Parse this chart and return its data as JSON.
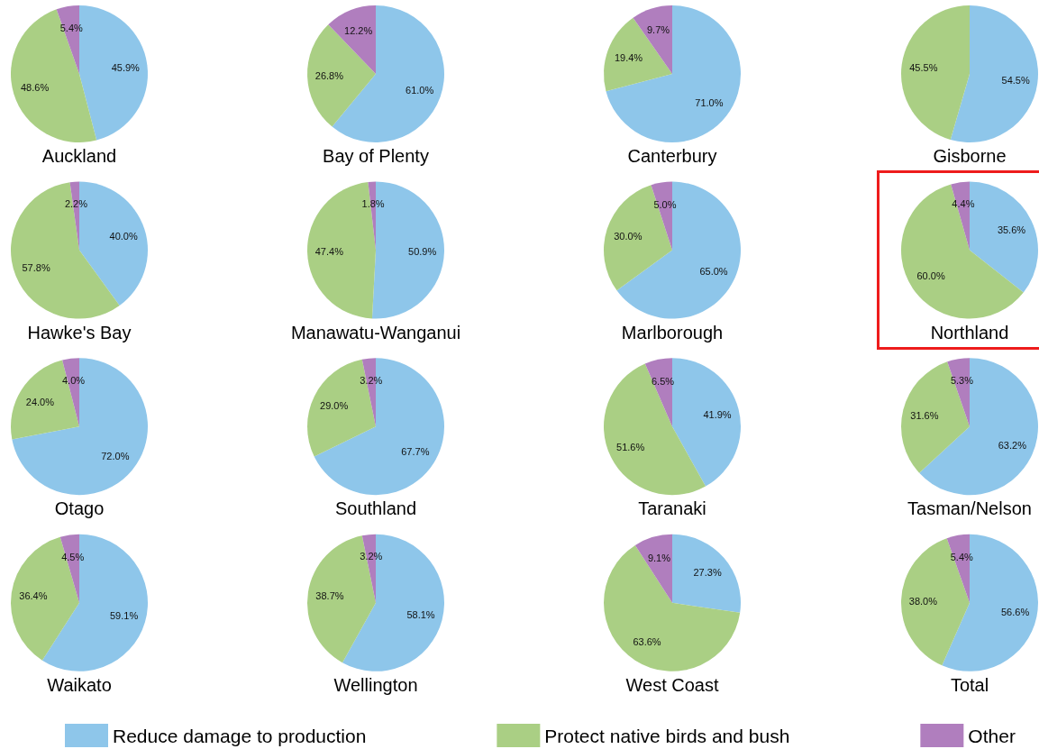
{
  "chart_data": {
    "type": "pie",
    "categories": [
      "Reduce damage to production",
      "Protect native birds and bush",
      "Other"
    ],
    "colors": [
      "#8ec6ea",
      "#aacf84",
      "#b07ebe"
    ],
    "legend": "bottom",
    "series": [
      {
        "name": "Auckland",
        "values": [
          45.9,
          48.6,
          5.4
        ],
        "value_labels": [
          "45.9%",
          "48.6%",
          "5.4%"
        ]
      },
      {
        "name": "Bay of Plenty",
        "values": [
          61.0,
          26.8,
          12.2
        ],
        "value_labels": [
          "61.0%",
          "26.8%",
          "12.2%"
        ]
      },
      {
        "name": "Canterbury",
        "values": [
          71.0,
          19.4,
          9.7
        ],
        "value_labels": [
          "71.0%",
          "19.4%",
          "9.7%"
        ]
      },
      {
        "name": "Gisborne",
        "values": [
          54.5,
          45.5,
          null
        ],
        "value_labels": [
          "54.5%",
          "45.5%",
          null
        ]
      },
      {
        "name": "Hawke's Bay",
        "values": [
          40.0,
          57.8,
          2.2
        ],
        "value_labels": [
          "40.0%",
          "57.8%",
          "2.2%"
        ]
      },
      {
        "name": "Manawatu-Wanganui",
        "values": [
          50.9,
          47.4,
          1.8
        ],
        "value_labels": [
          "50.9%",
          "47.4%",
          "1.8%"
        ]
      },
      {
        "name": "Marlborough",
        "values": [
          65.0,
          30.0,
          5.0
        ],
        "value_labels": [
          "65.0%",
          "30.0%",
          "5.0%"
        ]
      },
      {
        "name": "Northland",
        "values": [
          35.6,
          60.0,
          4.4
        ],
        "value_labels": [
          "35.6%",
          "60.0%",
          "4.4%"
        ]
      },
      {
        "name": "Otago",
        "values": [
          72.0,
          24.0,
          4.0
        ],
        "value_labels": [
          "72.0%",
          "24.0%",
          "4.0%"
        ]
      },
      {
        "name": "Southland",
        "values": [
          67.7,
          29.0,
          3.2
        ],
        "value_labels": [
          "67.7%",
          "29.0%",
          "3.2%"
        ]
      },
      {
        "name": "Taranaki",
        "values": [
          41.9,
          51.6,
          6.5
        ],
        "value_labels": [
          "41.9%",
          "51.6%",
          "6.5%"
        ]
      },
      {
        "name": "Tasman/Nelson",
        "values": [
          63.2,
          31.6,
          5.3
        ],
        "value_labels": [
          "63.2%",
          "31.6%",
          "5.3%"
        ]
      },
      {
        "name": "Waikato",
        "values": [
          59.1,
          36.4,
          4.5
        ],
        "value_labels": [
          "59.1%",
          "36.4%",
          "4.5%"
        ]
      },
      {
        "name": "Wellington",
        "values": [
          58.1,
          38.7,
          3.2
        ],
        "value_labels": [
          "58.1%",
          "38.7%",
          "3.2%"
        ]
      },
      {
        "name": "West Coast",
        "values": [
          27.3,
          63.6,
          9.1
        ],
        "value_labels": [
          "27.3%",
          "63.6%",
          "9.1%"
        ]
      },
      {
        "name": "Total",
        "values": [
          56.6,
          38.0,
          5.4
        ],
        "value_labels": [
          "56.6%",
          "38.0%",
          "5.4%"
        ]
      }
    ]
  }
}
